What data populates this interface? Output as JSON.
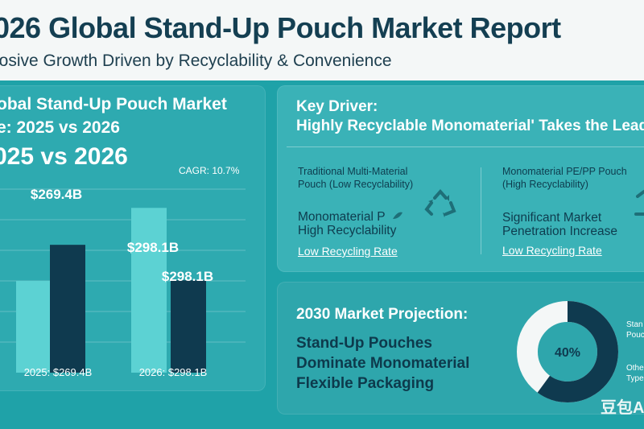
{
  "header": {
    "title": "026 Global Stand-Up Pouch Market Report",
    "subtitle": "losive Growth Driven by Recyclability & Convenience"
  },
  "chart_panel": {
    "title_line1": "obal Stand-Up Pouch Market",
    "title_line2": "e: 2025 vs 2026",
    "big_title": "025 vs 2026",
    "cagr": "CAGR: 10.7%"
  },
  "chart_data": {
    "type": "bar",
    "categories": [
      "2025: $269.4B",
      "2026: $298.1B"
    ],
    "series": [
      {
        "values": [
          150,
          269.4
        ]
      },
      {
        "values": [
          209,
          151
        ]
      }
    ],
    "data_labels": [
      "$269.4B",
      "$298.1B",
      "$298.1B"
    ],
    "ylim": [
      0,
      300
    ],
    "grid": true,
    "colors": [
      "#5cd2d3",
      "#0f3a4f"
    ]
  },
  "driver": {
    "heading_line1": "Key Driver:",
    "heading_line2": "Highly Recyclable Monomaterial' Takes the Lead",
    "left": {
      "caption_line1": "Traditional Multi-Material",
      "caption_line2": "Pouch (Low Recyclability)",
      "label_line1": "Monomaterial P",
      "label_line2": "High Recyclability",
      "link": "Low Recycling Rate",
      "icon": "recycle-icon"
    },
    "right": {
      "caption_line1": "Monomaterial PE/PP Pouch",
      "caption_line2": "(High Recyclability)",
      "label_line1": "Significant Market",
      "label_line2": "Penetration Increase",
      "link": "Low Recycling Rate",
      "icon": "recycle-icon"
    }
  },
  "projection": {
    "heading": "2030 Market Projection:",
    "line1": "Stand-Up Pouches",
    "line2": "Dominate Monomaterial",
    "line3": "Flexible Packaging",
    "donut_percent": 60,
    "donut_label": "40%",
    "legend": [
      "Stan",
      "Pouc",
      "Othe",
      "Type"
    ],
    "colors": [
      "#0f3a4f",
      "#f4f7f7"
    ]
  },
  "watermark": "豆包AI"
}
